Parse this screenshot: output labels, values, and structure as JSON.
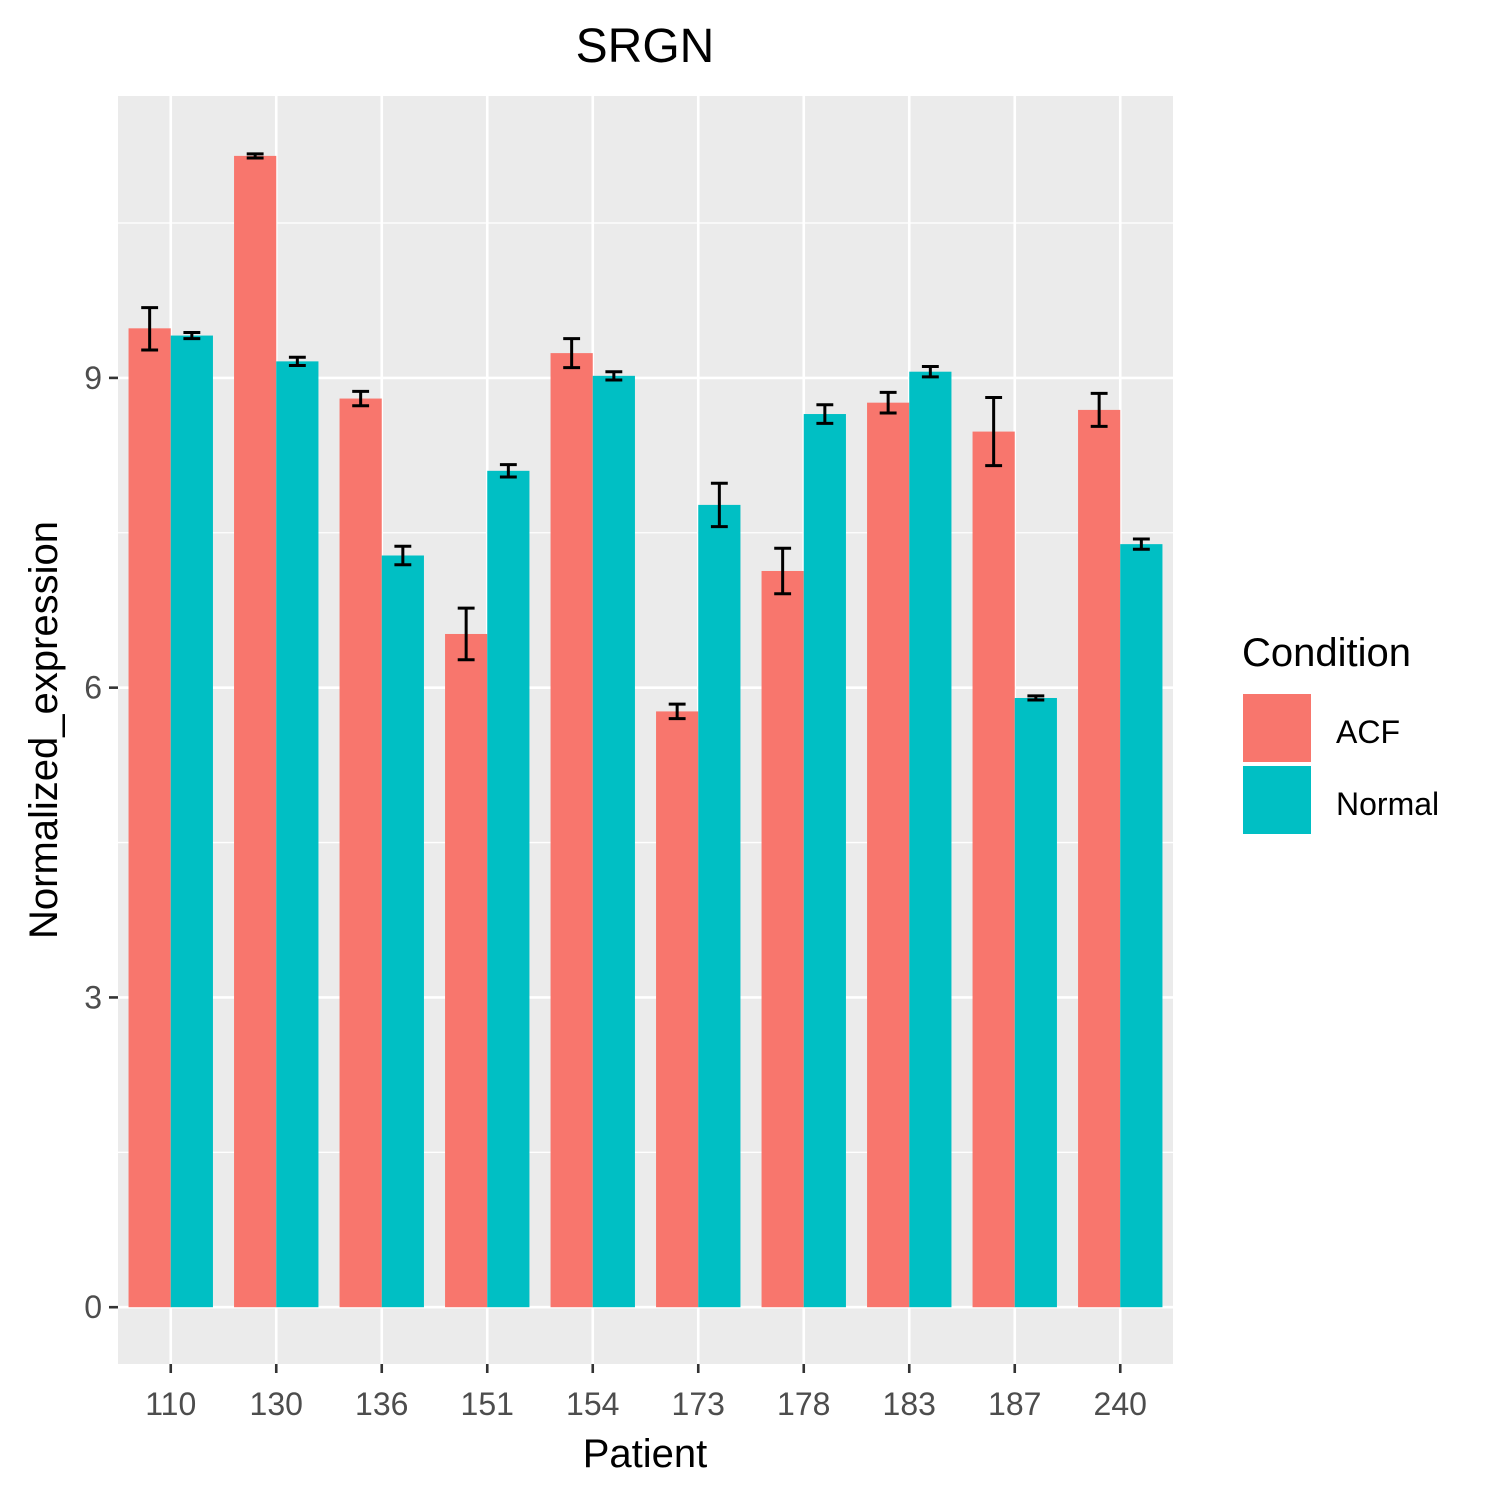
{
  "chart_data": {
    "type": "bar",
    "title": "SRGN",
    "xlabel": "Patient",
    "ylabel": "Normalized_expression",
    "categories": [
      "110",
      "130",
      "136",
      "151",
      "154",
      "173",
      "178",
      "183",
      "187",
      "240"
    ],
    "series": [
      {
        "name": "ACF",
        "color": "#F8766D",
        "values": [
          9.48,
          11.15,
          8.8,
          6.52,
          9.24,
          5.77,
          7.13,
          8.76,
          8.48,
          8.69
        ],
        "err_low": [
          9.27,
          11.13,
          8.73,
          6.27,
          9.1,
          5.7,
          6.91,
          8.66,
          8.15,
          8.53
        ],
        "err_high": [
          9.68,
          11.17,
          8.87,
          6.77,
          9.38,
          5.84,
          7.35,
          8.86,
          8.81,
          8.85
        ]
      },
      {
        "name": "Normal",
        "color": "#00BFC4",
        "values": [
          9.41,
          9.16,
          7.28,
          8.1,
          9.02,
          7.77,
          8.65,
          9.06,
          5.9,
          7.39
        ],
        "err_low": [
          9.38,
          9.12,
          7.19,
          8.04,
          8.98,
          7.56,
          8.56,
          9.01,
          5.88,
          7.34
        ],
        "err_high": [
          9.44,
          9.2,
          7.37,
          8.16,
          9.06,
          7.98,
          8.74,
          9.11,
          5.92,
          7.44
        ]
      }
    ],
    "ylim": [
      -0.55,
      11.73
    ],
    "yticks": [
      0,
      3,
      6,
      9
    ],
    "grid": true,
    "legend": {
      "title": "Condition",
      "position": "right",
      "entries": [
        "ACF",
        "Normal"
      ]
    },
    "panel_background": "#EBEBEB",
    "grid_color": "#FFFFFF"
  }
}
